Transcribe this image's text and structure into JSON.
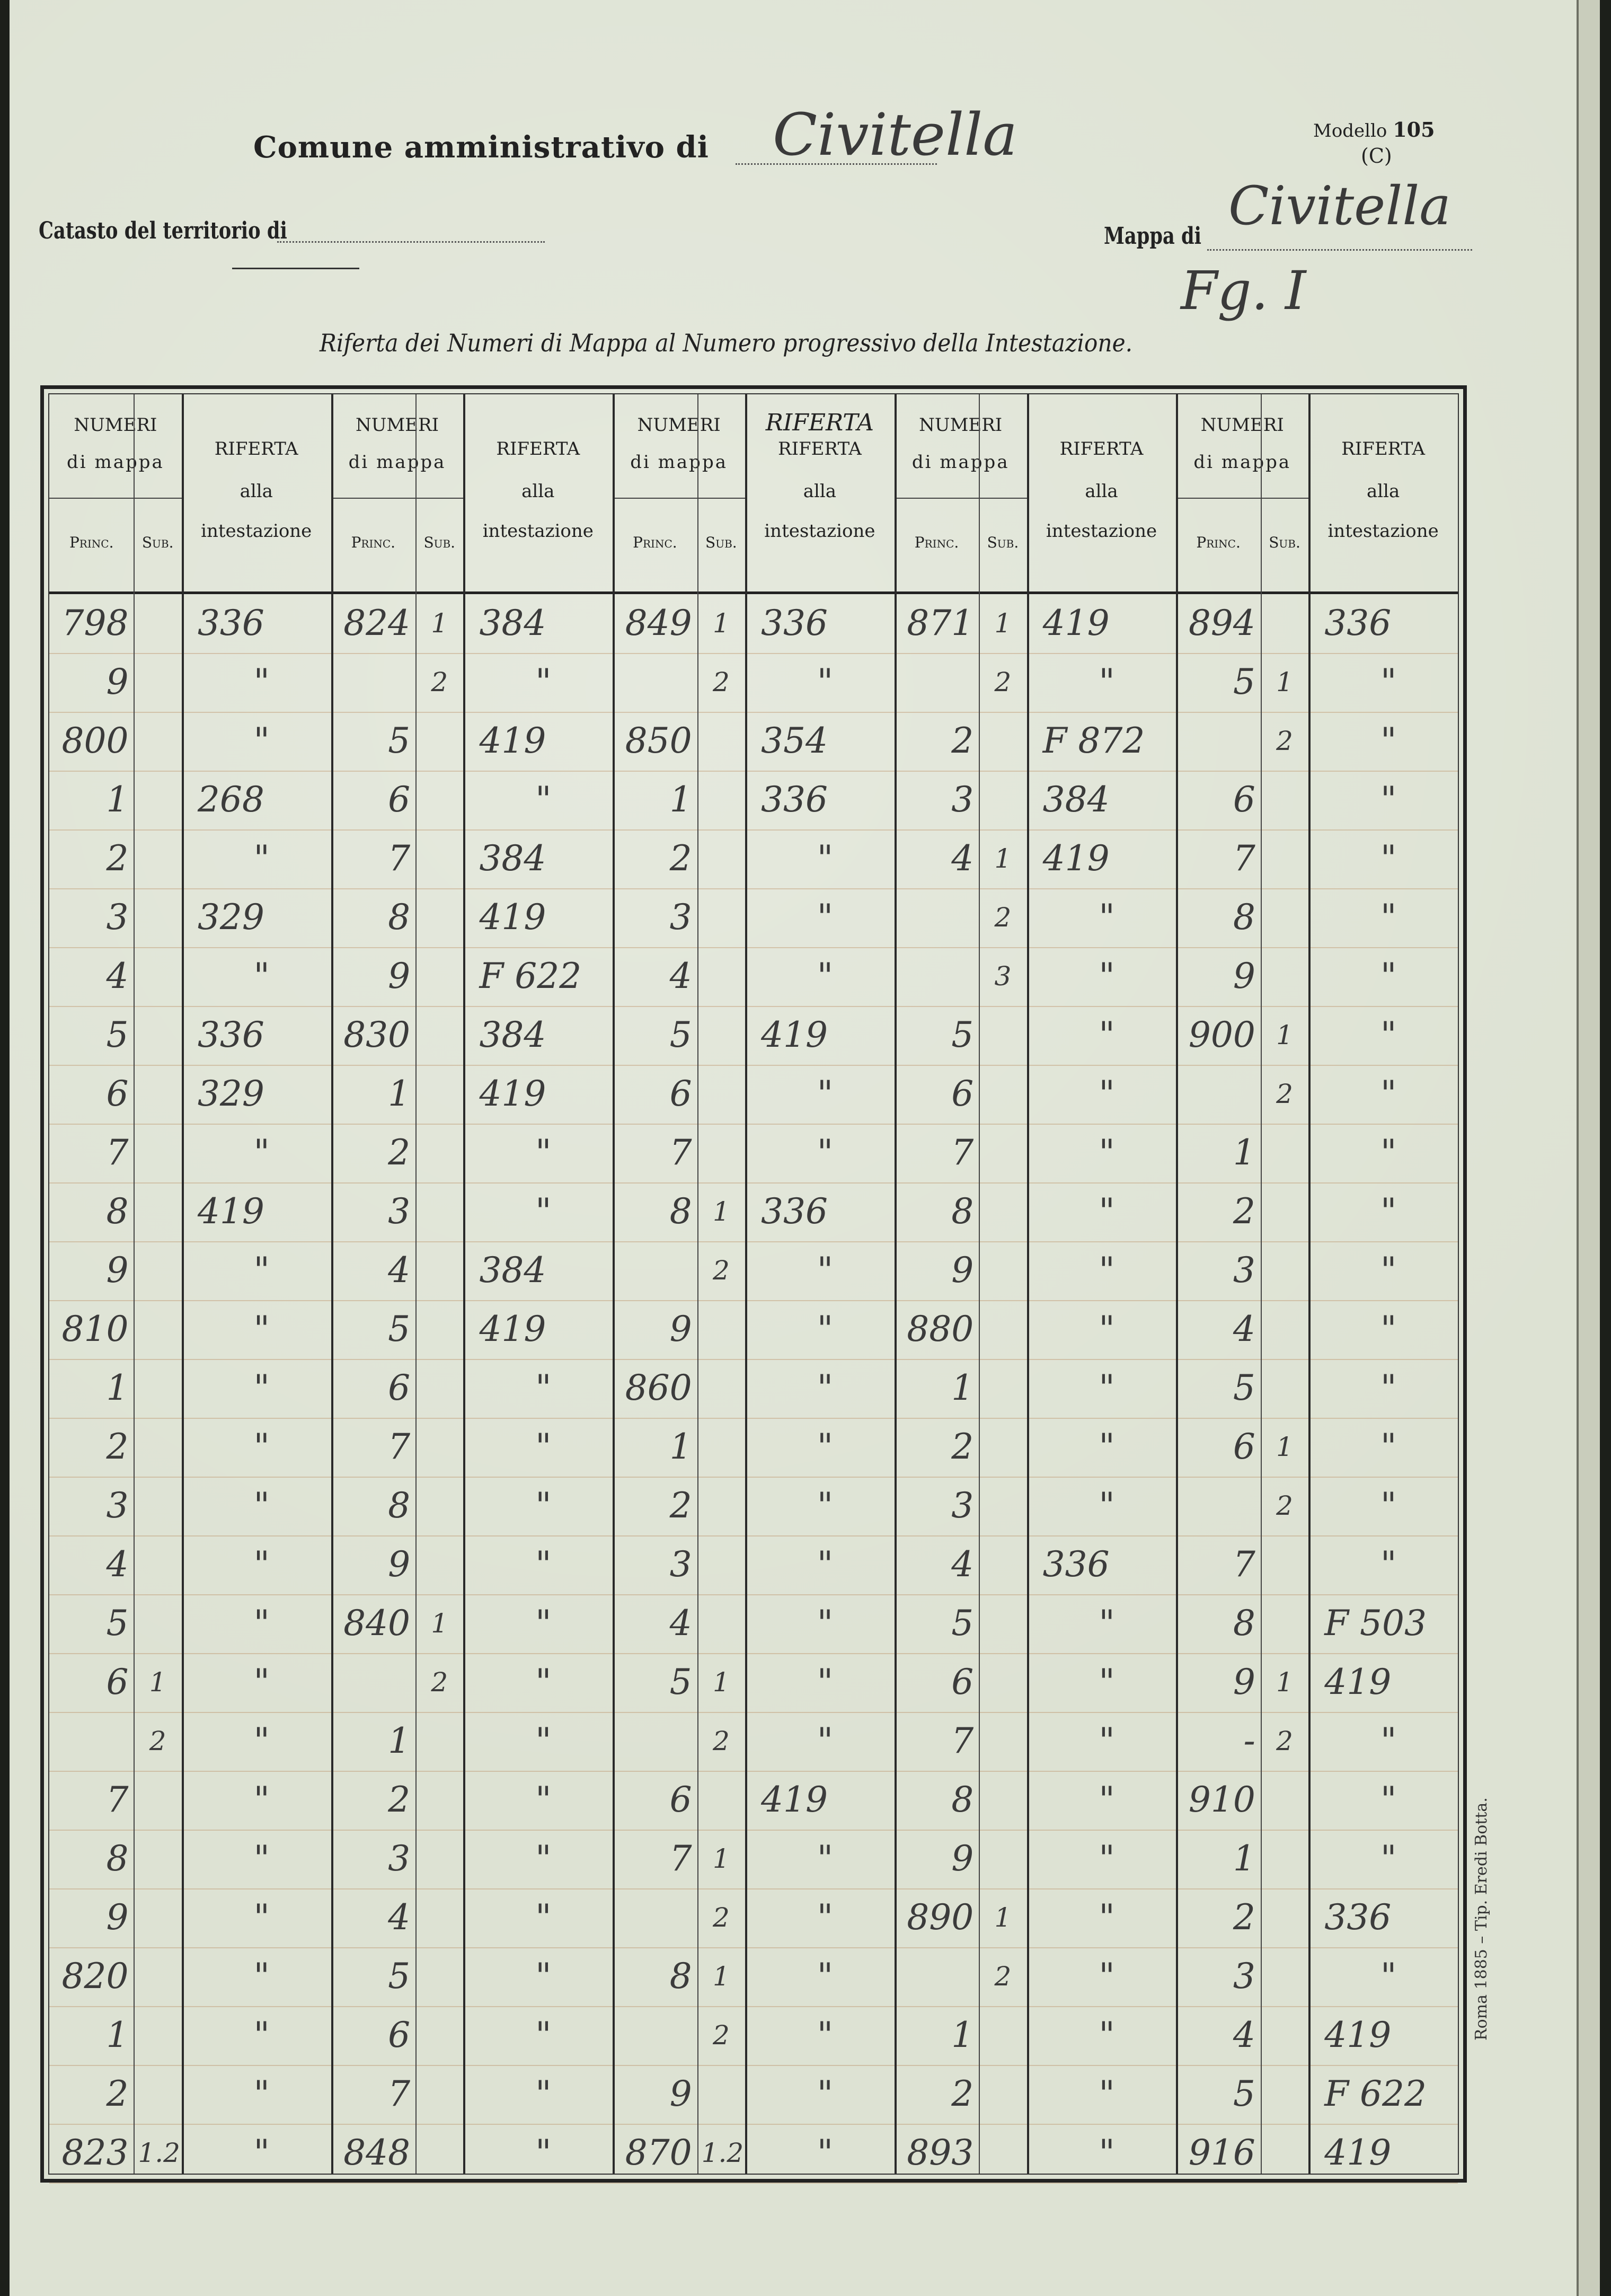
{
  "header": {
    "comune_label": "Comune amministrativo di",
    "comune_value": "Civitella",
    "modello_label": "Modello",
    "modello_number": "105",
    "modello_variant": "(C)",
    "catasto_label": "Catasto del territorio di",
    "mappa_label": "Mappa di",
    "mappa_value": "Civitella",
    "foglio_value": "Fg. I",
    "subtitle": "Riferta dei Numeri di Mappa al Numero progressivo della Intestazione."
  },
  "columns": {
    "numeri": "NUMERI",
    "di_mappa": "di mappa",
    "princ": "Princ.",
    "sub": "Sub.",
    "riferta": "RIFERTA",
    "alla": "alla",
    "intestazione": "intestazione",
    "handwritten_riferta": "RIFERTA"
  },
  "groups": [
    {
      "rows": [
        [
          "798",
          "",
          "336"
        ],
        [
          "9",
          "",
          "\""
        ],
        [
          "800",
          "",
          "\""
        ],
        [
          "1",
          "",
          "268"
        ],
        [
          "2",
          "",
          "\""
        ],
        [
          "3",
          "",
          "329"
        ],
        [
          "4",
          "",
          "\""
        ],
        [
          "5",
          "",
          "336"
        ],
        [
          "6",
          "",
          "329"
        ],
        [
          "7",
          "",
          "\""
        ],
        [
          "8",
          "",
          "419"
        ],
        [
          "9",
          "",
          "\""
        ],
        [
          "810",
          "",
          "\""
        ],
        [
          "1",
          "",
          "\""
        ],
        [
          "2",
          "",
          "\""
        ],
        [
          "3",
          "",
          "\""
        ],
        [
          "4",
          "",
          "\""
        ],
        [
          "5",
          "",
          "\""
        ],
        [
          "6",
          "1",
          "\""
        ],
        [
          "",
          "2",
          "\""
        ],
        [
          "7",
          "",
          "\""
        ],
        [
          "8",
          "",
          "\""
        ],
        [
          "9",
          "",
          "\""
        ],
        [
          "820",
          "",
          "\""
        ],
        [
          "1",
          "",
          "\""
        ],
        [
          "2",
          "",
          "\""
        ],
        [
          "823",
          "1.2",
          "\""
        ]
      ]
    },
    {
      "rows": [
        [
          "824",
          "1",
          "384"
        ],
        [
          "",
          "2",
          "\""
        ],
        [
          "5",
          "",
          "419"
        ],
        [
          "6",
          "",
          "\""
        ],
        [
          "7",
          "",
          "384"
        ],
        [
          "8",
          "",
          "419"
        ],
        [
          "9",
          "",
          "F 622"
        ],
        [
          "830",
          "",
          "384"
        ],
        [
          "1",
          "",
          "419"
        ],
        [
          "2",
          "",
          "\""
        ],
        [
          "3",
          "",
          "\""
        ],
        [
          "4",
          "",
          "384"
        ],
        [
          "5",
          "",
          "419"
        ],
        [
          "6",
          "",
          "\""
        ],
        [
          "7",
          "",
          "\""
        ],
        [
          "8",
          "",
          "\""
        ],
        [
          "9",
          "",
          "\""
        ],
        [
          "840",
          "1",
          "\""
        ],
        [
          "",
          "2",
          "\""
        ],
        [
          "1",
          "",
          "\""
        ],
        [
          "2",
          "",
          "\""
        ],
        [
          "3",
          "",
          "\""
        ],
        [
          "4",
          "",
          "\""
        ],
        [
          "5",
          "",
          "\""
        ],
        [
          "6",
          "",
          "\""
        ],
        [
          "7",
          "",
          "\""
        ],
        [
          "848",
          "",
          "\""
        ]
      ]
    },
    {
      "rows": [
        [
          "849",
          "1",
          "336"
        ],
        [
          "",
          "2",
          "\""
        ],
        [
          "850",
          "",
          "354"
        ],
        [
          "1",
          "",
          "336"
        ],
        [
          "2",
          "",
          "\""
        ],
        [
          "3",
          "",
          "\""
        ],
        [
          "4",
          "",
          "\""
        ],
        [
          "5",
          "",
          "419"
        ],
        [
          "6",
          "",
          "\""
        ],
        [
          "7",
          "",
          "\""
        ],
        [
          "8",
          "1",
          "336"
        ],
        [
          "",
          "2",
          "\""
        ],
        [
          "9",
          "",
          "\""
        ],
        [
          "860",
          "",
          "\""
        ],
        [
          "1",
          "",
          "\""
        ],
        [
          "2",
          "",
          "\""
        ],
        [
          "3",
          "",
          "\""
        ],
        [
          "4",
          "",
          "\""
        ],
        [
          "5",
          "1",
          "\""
        ],
        [
          "",
          "2",
          "\""
        ],
        [
          "6",
          "",
          "419"
        ],
        [
          "7",
          "1",
          "\""
        ],
        [
          "",
          "2",
          "\""
        ],
        [
          "8",
          "1",
          "\""
        ],
        [
          "",
          "2",
          "\""
        ],
        [
          "9",
          "",
          "\""
        ],
        [
          "870",
          "1.2",
          "\""
        ]
      ]
    },
    {
      "rows": [
        [
          "871",
          "1",
          "419"
        ],
        [
          "",
          "2",
          "\""
        ],
        [
          "2",
          "",
          "F 872"
        ],
        [
          "3",
          "",
          "384"
        ],
        [
          "4",
          "1",
          "419"
        ],
        [
          "",
          "2",
          "\""
        ],
        [
          "",
          "3",
          "\""
        ],
        [
          "5",
          "",
          "\""
        ],
        [
          "6",
          "",
          "\""
        ],
        [
          "7",
          "",
          "\""
        ],
        [
          "8",
          "",
          "\""
        ],
        [
          "9",
          "",
          "\""
        ],
        [
          "880",
          "",
          "\""
        ],
        [
          "1",
          "",
          "\""
        ],
        [
          "2",
          "",
          "\""
        ],
        [
          "3",
          "",
          "\""
        ],
        [
          "4",
          "",
          "336"
        ],
        [
          "5",
          "",
          "\""
        ],
        [
          "6",
          "",
          "\""
        ],
        [
          "7",
          "",
          "\""
        ],
        [
          "8",
          "",
          "\""
        ],
        [
          "9",
          "",
          "\""
        ],
        [
          "890",
          "1",
          "\""
        ],
        [
          "",
          "2",
          "\""
        ],
        [
          "1",
          "",
          "\""
        ],
        [
          "2",
          "",
          "\""
        ],
        [
          "893",
          "",
          "\""
        ]
      ]
    },
    {
      "rows": [
        [
          "894",
          "",
          "336"
        ],
        [
          "5",
          "1",
          "\""
        ],
        [
          "",
          "2",
          "\""
        ],
        [
          "6",
          "",
          "\""
        ],
        [
          "7",
          "",
          "\""
        ],
        [
          "8",
          "",
          "\""
        ],
        [
          "9",
          "",
          "\""
        ],
        [
          "900",
          "1",
          "\""
        ],
        [
          "",
          "2",
          "\""
        ],
        [
          "1",
          "",
          "\""
        ],
        [
          "2",
          "",
          "\""
        ],
        [
          "3",
          "",
          "\""
        ],
        [
          "4",
          "",
          "\""
        ],
        [
          "5",
          "",
          "\""
        ],
        [
          "6",
          "1",
          "\""
        ],
        [
          "",
          "2",
          "\""
        ],
        [
          "7",
          "",
          "\""
        ],
        [
          "8",
          "",
          "F 503"
        ],
        [
          "9",
          "1",
          "419"
        ],
        [
          "-",
          "2",
          "\""
        ],
        [
          "910",
          "",
          "\""
        ],
        [
          "1",
          "",
          "\""
        ],
        [
          "2",
          "",
          "336"
        ],
        [
          "3",
          "",
          "\""
        ],
        [
          "4",
          "",
          "419"
        ],
        [
          "5",
          "",
          "F 622"
        ],
        [
          "916",
          "",
          "419"
        ]
      ]
    }
  ],
  "imprint": "Roma 1885 – Tip. Eredi Botta."
}
